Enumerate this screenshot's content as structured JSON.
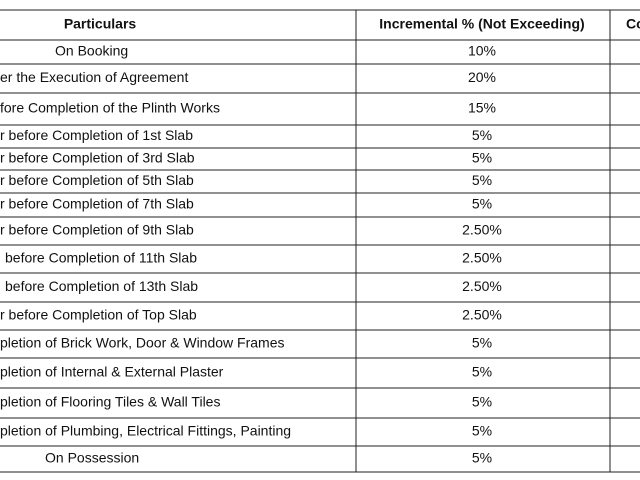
{
  "table": {
    "header": [
      "Particulars",
      "Incremental % (Not Exceeding)",
      "Co"
    ],
    "rows": [
      [
        "On Booking",
        "10%"
      ],
      [
        "er the Execution of Agreement",
        "20%"
      ],
      [
        "fore Completion of the Plinth Works",
        "15%"
      ],
      [
        "r before Completion of 1st Slab",
        "5%"
      ],
      [
        "r before Completion of 3rd Slab",
        "5%"
      ],
      [
        "r before Completion of 5th Slab",
        "5%"
      ],
      [
        "r before Completion of 7th Slab",
        "5%"
      ],
      [
        "r before Completion of 9th Slab",
        "2.50%"
      ],
      [
        "before Completion of 11th Slab",
        "2.50%"
      ],
      [
        "before Completion of 13th Slab",
        "2.50%"
      ],
      [
        "r before Completion of Top Slab",
        "2.50%"
      ],
      [
        "pletion of Brick Work, Door & Window Frames",
        "5%"
      ],
      [
        "pletion of Internal & External Plaster",
        "5%"
      ],
      [
        "pletion of Flooring Tiles & Wall Tiles",
        "5%"
      ],
      [
        "pletion of Plumbing, Electrical Fittings, Painting",
        "5%"
      ],
      [
        "On Possession",
        "5%"
      ]
    ]
  }
}
